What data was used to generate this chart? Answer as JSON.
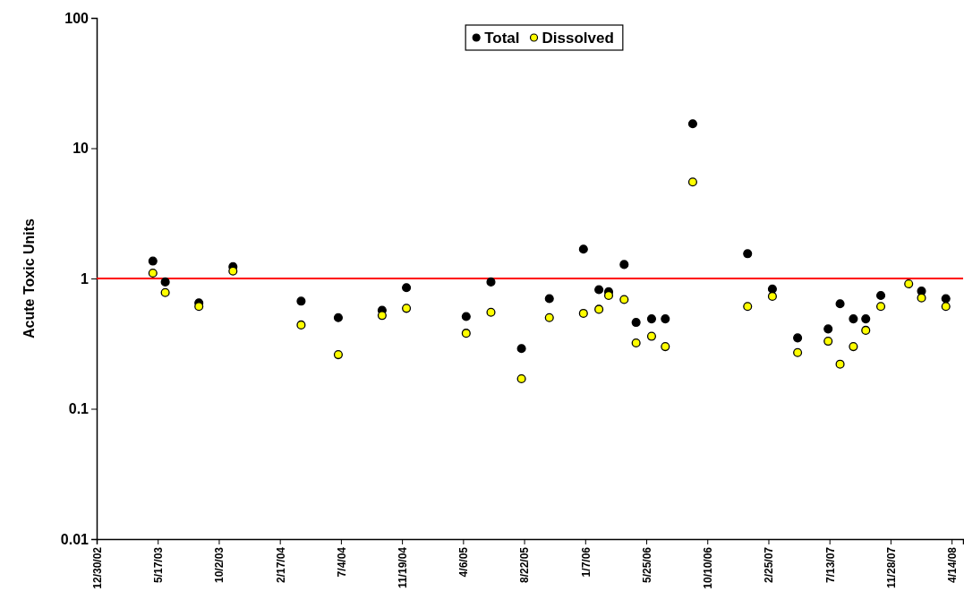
{
  "chart_data": {
    "type": "scatter",
    "ylabel": "Acute Toxic Units",
    "log": true,
    "marker": "circle",
    "legend": "top",
    "grid": false,
    "x": [
      "2003-05-06",
      "2003-06-03",
      "2003-08-18",
      "2003-11-03",
      "2004-04-05",
      "2004-06-28",
      "2004-10-05",
      "2004-11-29",
      "2005-04-13",
      "2005-06-08",
      "2005-08-16",
      "2005-10-18",
      "2006-01-03",
      "2006-02-07",
      "2006-03-01",
      "2006-04-05",
      "2006-05-02",
      "2006-06-06",
      "2006-07-07",
      "2006-09-07",
      "2007-01-09",
      "2007-03-06",
      "2007-05-02",
      "2007-07-10",
      "2007-08-06",
      "2007-09-05",
      "2007-10-03",
      "2007-11-06",
      "2008-01-08",
      "2008-02-06",
      "2008-04-01"
    ],
    "series": [
      {
        "name": "Total",
        "color": "#000000",
        "values": [
          1.36,
          0.94,
          0.65,
          1.23,
          0.67,
          0.5,
          0.57,
          0.85,
          0.51,
          0.94,
          0.29,
          0.7,
          1.68,
          0.82,
          0.79,
          1.28,
          0.46,
          0.49,
          0.49,
          15.4,
          1.55,
          0.83,
          0.35,
          0.41,
          0.64,
          0.49,
          0.49,
          0.74,
          null,
          0.8,
          0.7
        ]
      },
      {
        "name": "Dissolved",
        "color": "#ffff00",
        "values": [
          1.1,
          0.78,
          0.61,
          1.14,
          0.44,
          0.26,
          0.52,
          0.59,
          0.38,
          0.55,
          0.17,
          0.5,
          0.54,
          0.58,
          0.74,
          0.69,
          0.32,
          0.36,
          0.3,
          5.5,
          0.61,
          0.73,
          0.27,
          0.33,
          0.22,
          0.3,
          0.4,
          0.61,
          0.91,
          0.71,
          0.61
        ]
      }
    ],
    "xlim": [
      "2002-12-30",
      "2008-05-10"
    ],
    "xticks": [
      {
        "value": "2002-12-30",
        "label": "12/30/02"
      },
      {
        "value": "2003-05-17",
        "label": "5/17/03"
      },
      {
        "value": "2003-10-02",
        "label": "10/2/03"
      },
      {
        "value": "2004-02-17",
        "label": "2/17/04"
      },
      {
        "value": "2004-07-04",
        "label": "7/4/04"
      },
      {
        "value": "2004-11-19",
        "label": "11/19/04"
      },
      {
        "value": "2005-04-06",
        "label": "4/6/05"
      },
      {
        "value": "2005-08-22",
        "label": "8/22/05"
      },
      {
        "value": "2006-01-07",
        "label": "1/7/06"
      },
      {
        "value": "2006-05-25",
        "label": "5/25/06"
      },
      {
        "value": "2006-10-10",
        "label": "10/10/06"
      },
      {
        "value": "2007-02-25",
        "label": "2/25/07"
      },
      {
        "value": "2007-07-13",
        "label": "7/13/07"
      },
      {
        "value": "2007-11-28",
        "label": "11/28/07"
      },
      {
        "value": "2008-04-14",
        "label": "4/14/08"
      }
    ],
    "ylim": [
      0.01,
      100
    ],
    "yticks": [
      {
        "value": 0.01,
        "label": "0.01"
      },
      {
        "value": 0.1,
        "label": "0.1"
      },
      {
        "value": 1,
        "label": "1"
      },
      {
        "value": 10,
        "label": "10"
      },
      {
        "value": 100,
        "label": "100"
      }
    ],
    "ref_lines": [
      {
        "axis": "y",
        "value": 1,
        "color": "#ff0000"
      }
    ]
  }
}
